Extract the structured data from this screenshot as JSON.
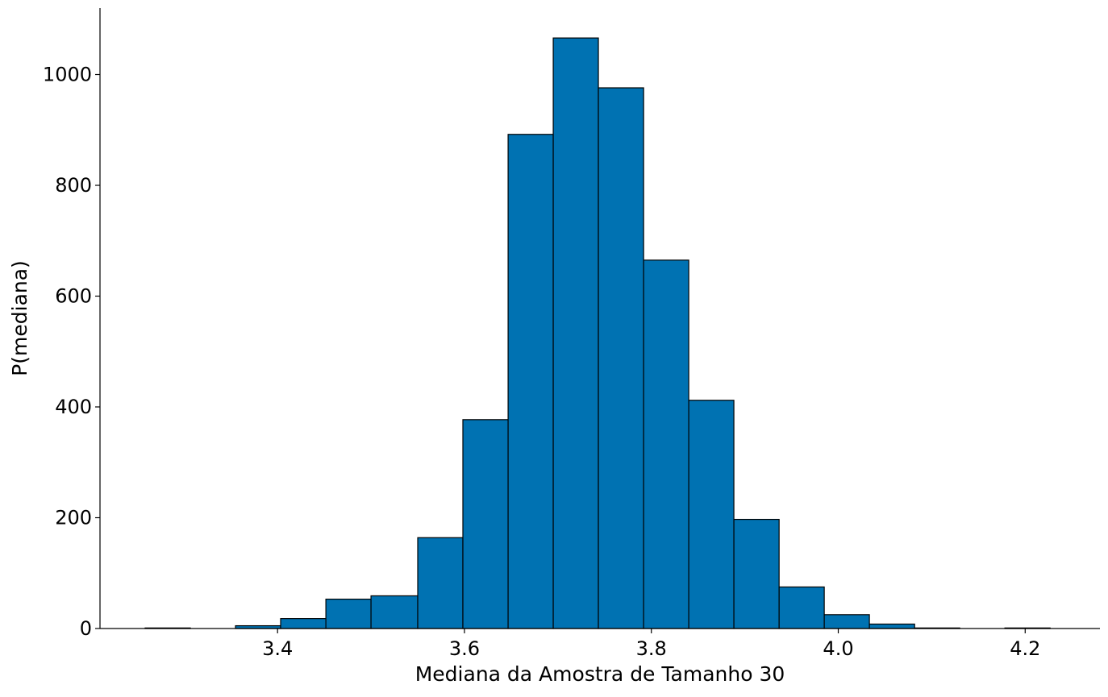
{
  "chart_data": {
    "type": "bar",
    "subtype": "histogram",
    "title": "",
    "xlabel": "Mediana da Amostra de Tamanho 30",
    "ylabel": "P(mediana)",
    "xlim": [
      3.21,
      4.28
    ],
    "ylim": [
      0,
      1120
    ],
    "x_ticks": [
      3.4,
      3.6,
      3.8,
      4.0,
      4.2
    ],
    "x_tick_labels": [
      "3.4",
      "3.6",
      "3.8",
      "4.0",
      "4.2"
    ],
    "y_ticks": [
      0,
      200,
      400,
      600,
      800,
      1000
    ],
    "y_tick_labels": [
      "0",
      "200",
      "400",
      "600",
      "800",
      "1000"
    ],
    "bins": [
      {
        "x0": 3.2583,
        "x1": 3.3067,
        "count": 1
      },
      {
        "x0": 3.3067,
        "x1": 3.355,
        "count": 0
      },
      {
        "x0": 3.355,
        "x1": 3.4033,
        "count": 5
      },
      {
        "x0": 3.4033,
        "x1": 3.4517,
        "count": 18
      },
      {
        "x0": 3.4517,
        "x1": 3.5,
        "count": 53
      },
      {
        "x0": 3.5,
        "x1": 3.55,
        "count": 59
      },
      {
        "x0": 3.55,
        "x1": 3.5983,
        "count": 164
      },
      {
        "x0": 3.5983,
        "x1": 3.6467,
        "count": 377
      },
      {
        "x0": 3.6467,
        "x1": 3.695,
        "count": 892
      },
      {
        "x0": 3.695,
        "x1": 3.7433,
        "count": 1066
      },
      {
        "x0": 3.7433,
        "x1": 3.7917,
        "count": 976
      },
      {
        "x0": 3.7917,
        "x1": 3.84,
        "count": 665
      },
      {
        "x0": 3.84,
        "x1": 3.8883,
        "count": 412
      },
      {
        "x0": 3.8883,
        "x1": 3.9367,
        "count": 197
      },
      {
        "x0": 3.9367,
        "x1": 3.985,
        "count": 75
      },
      {
        "x0": 3.985,
        "x1": 4.0333,
        "count": 25
      },
      {
        "x0": 4.0333,
        "x1": 4.0817,
        "count": 8
      },
      {
        "x0": 4.0817,
        "x1": 4.13,
        "count": 1
      },
      {
        "x0": 4.13,
        "x1": 4.1783,
        "count": 0
      },
      {
        "x0": 4.1783,
        "x1": 4.2267,
        "count": 1
      }
    ],
    "bar_color": "#0072B2",
    "edge_color": "#000000",
    "grid": false,
    "legend": "none"
  }
}
